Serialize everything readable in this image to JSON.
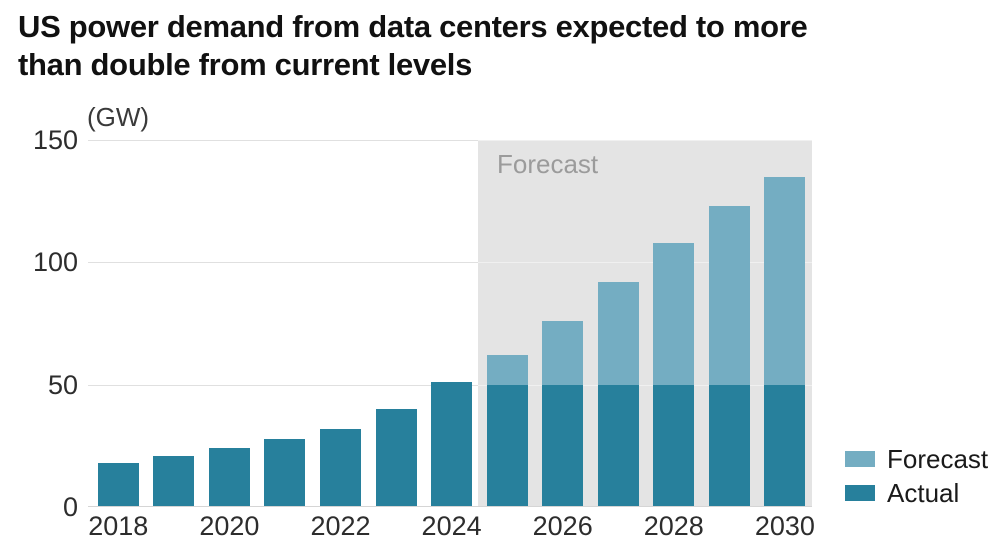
{
  "title": {
    "line1": "US power demand from data centers expected to more",
    "line2": "than double from current levels"
  },
  "unit_label": "(GW)",
  "forecast_region_label": "Forecast",
  "colors": {
    "actual": "#27809c",
    "forecast": "#74adc2",
    "forecast_band": "#e4e4e4",
    "gridline": "#e0e0e0",
    "axis_line": "#d5d5d5",
    "title_text": "#111111",
    "tick_text": "#2d2d2d",
    "band_label_text": "#9b9b9b"
  },
  "legend": {
    "items": [
      {
        "label": "Forecast",
        "color": "#74adc2"
      },
      {
        "label": "Actual",
        "color": "#27809c"
      }
    ]
  },
  "chart_data": {
    "type": "bar",
    "title": "US power demand from data centers expected to more than double from current levels",
    "ylabel": "(GW)",
    "unit": "GW",
    "categories": [
      "2018",
      "2019",
      "2020",
      "2021",
      "2022",
      "2023",
      "2024",
      "2025",
      "2026",
      "2027",
      "2028",
      "2029",
      "2030"
    ],
    "series": [
      {
        "name": "Actual",
        "color": "#27809c",
        "values": [
          18,
          21,
          24,
          28,
          32,
          40,
          51,
          50,
          50,
          50,
          50,
          50,
          50
        ]
      },
      {
        "name": "Forecast",
        "color": "#74adc2",
        "values": [
          0,
          0,
          0,
          0,
          0,
          0,
          0,
          12,
          26,
          42,
          58,
          73,
          85
        ]
      }
    ],
    "totals": [
      18,
      21,
      24,
      28,
      32,
      40,
      51,
      62,
      76,
      92,
      108,
      123,
      135
    ],
    "ylim": [
      0,
      150
    ],
    "yticks": [
      0,
      50,
      100,
      150
    ],
    "xtick_labels": [
      "2018",
      "2020",
      "2022",
      "2024",
      "2026",
      "2028",
      "2030"
    ],
    "xtick_category_indexes": [
      0,
      2,
      4,
      6,
      8,
      10,
      12
    ],
    "forecast_region": {
      "start_category": "2025",
      "label": "Forecast",
      "end_category": "2030"
    },
    "grid": "horizontal",
    "legend_position": "right-bottom"
  }
}
